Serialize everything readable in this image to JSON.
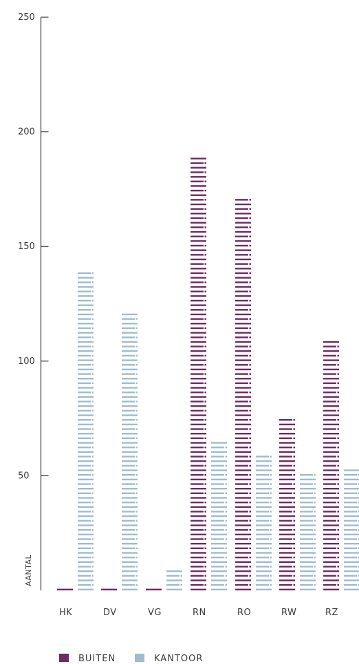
{
  "chart_data": {
    "type": "bar",
    "categories": [
      "HK",
      "DV",
      "VG",
      "RN",
      "RO",
      "RW",
      "RZ"
    ],
    "series": [
      {
        "name": "BUITEN",
        "color": "#6e2a62",
        "values": [
          1,
          1,
          1,
          189,
          171,
          76,
          109
        ]
      },
      {
        "name": "KANTOOR",
        "color": "#9fbccd",
        "values": [
          140,
          122,
          10,
          66,
          60,
          52,
          54
        ]
      }
    ],
    "ylabel": "AANTAL",
    "ylim": [
      0,
      250
    ],
    "yticks": [
      50,
      100,
      150,
      200,
      250
    ],
    "grid": false,
    "legend_position": "bottom-left"
  }
}
